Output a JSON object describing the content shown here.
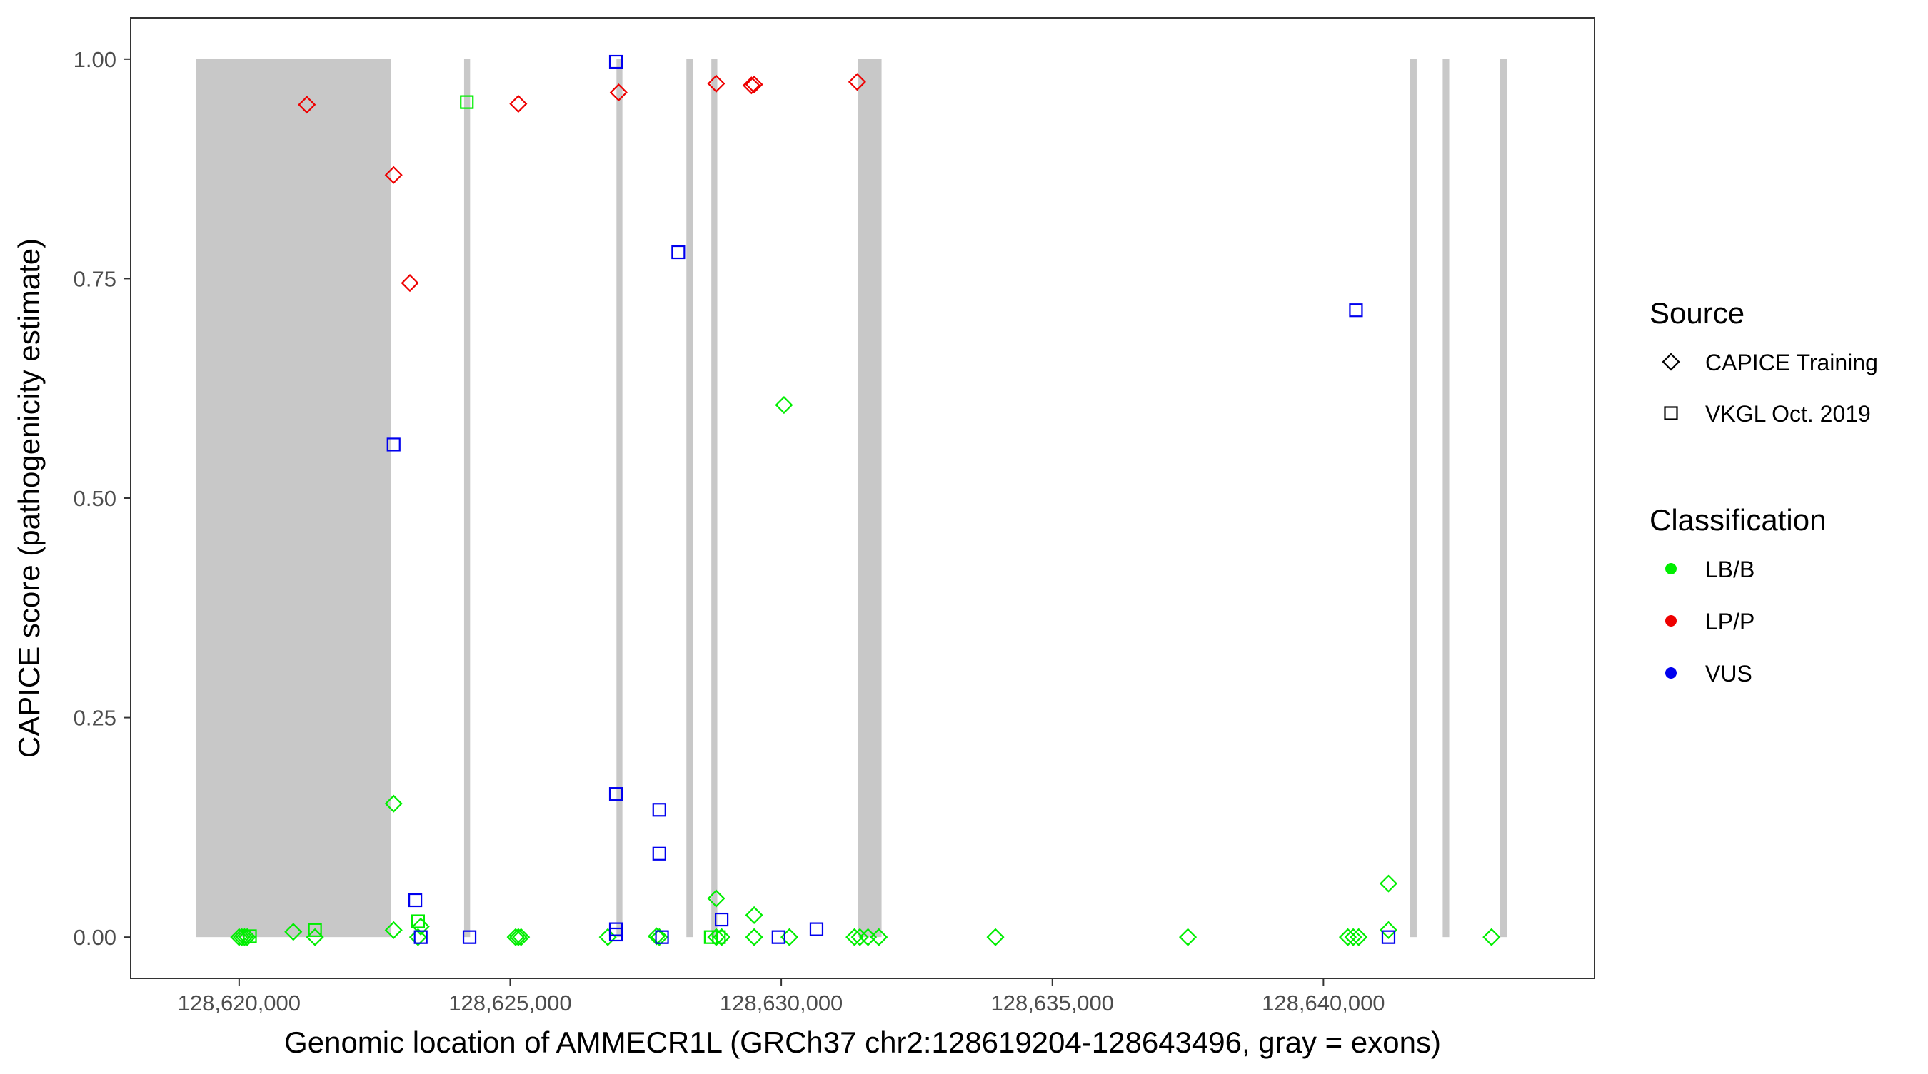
{
  "chart_data": {
    "type": "scatter",
    "title": "",
    "xlabel": "Genomic location of AMMECR1L (GRCh37 chr2:128619204-128643496, gray = exons)",
    "ylabel": "CAPICE score (pathogenicity estimate)",
    "xlim": [
      128618000,
      128645000
    ],
    "ylim": [
      -0.047,
      1.047
    ],
    "x_ticks": [
      128620000,
      128625000,
      128630000,
      128635000,
      128640000
    ],
    "x_tick_labels": [
      "128,620,000",
      "128,625,000",
      "128,630,000",
      "128,635,000",
      "128,640,000"
    ],
    "y_ticks": [
      0,
      0.25,
      0.5,
      0.75,
      1.0
    ],
    "y_tick_labels": [
      "0.00",
      "0.25",
      "0.50",
      "0.75",
      "1.00"
    ],
    "grid": false,
    "legend_placement": "right",
    "exons": [
      [
        128619204,
        128622800
      ],
      [
        128624150,
        128624260
      ],
      [
        128626960,
        128627070
      ],
      [
        128628250,
        128628370
      ],
      [
        128628710,
        128628820
      ],
      [
        128631420,
        128631850
      ],
      [
        128641600,
        128641720
      ],
      [
        128642200,
        128642320
      ],
      [
        128643250,
        128643380
      ]
    ],
    "exon_color": "#c8c8c8",
    "legend": {
      "source": {
        "title": "Source",
        "items": [
          {
            "label": "CAPICE Training",
            "shape": "diamond"
          },
          {
            "label": "VKGL Oct. 2019",
            "shape": "square"
          }
        ]
      },
      "classification": {
        "title": "Classification",
        "items": [
          {
            "label": "LB/B",
            "key": "LB/B",
            "color": "#00ee00"
          },
          {
            "label": "LP/P",
            "key": "LP/P",
            "color": "#ee0000"
          },
          {
            "label": "VUS",
            "key": "VUS",
            "color": "#0000ee"
          }
        ]
      }
    },
    "series": [
      {
        "source": "CAPICE Training",
        "classification": "LP/P",
        "shape": "diamond",
        "points": [
          [
            128621250,
            0.948
          ],
          [
            128622850,
            0.868
          ],
          [
            128623150,
            0.745
          ],
          [
            128625150,
            0.949
          ],
          [
            128627000,
            0.962
          ],
          [
            128628800,
            0.972
          ],
          [
            128629450,
            0.97
          ],
          [
            128629500,
            0.971
          ],
          [
            128631400,
            0.974
          ]
        ]
      },
      {
        "source": "CAPICE Training",
        "classification": "LB/B",
        "shape": "diamond",
        "points": [
          [
            128620000,
            0.0
          ],
          [
            128620050,
            0.0
          ],
          [
            128620100,
            0.0
          ],
          [
            128620150,
            0.0
          ],
          [
            128621000,
            0.006
          ],
          [
            128621400,
            0.0
          ],
          [
            128622850,
            0.152
          ],
          [
            128622850,
            0.008
          ],
          [
            128623300,
            0.0
          ],
          [
            128623350,
            0.012
          ],
          [
            128625100,
            0.0
          ],
          [
            128625150,
            0.0
          ],
          [
            128625200,
            0.0
          ],
          [
            128626800,
            0.0
          ],
          [
            128627700,
            0.001
          ],
          [
            128627750,
            0.0
          ],
          [
            128628800,
            0.044
          ],
          [
            128628800,
            0.0
          ],
          [
            128628900,
            0.0
          ],
          [
            128629500,
            0.025
          ],
          [
            128629500,
            0.0
          ],
          [
            128630050,
            0.606
          ],
          [
            128630150,
            0.0
          ],
          [
            128631350,
            0.0
          ],
          [
            128631450,
            0.0
          ],
          [
            128631600,
            0.0
          ],
          [
            128631800,
            0.0
          ],
          [
            128633950,
            0.0
          ],
          [
            128637500,
            0.0
          ],
          [
            128640450,
            0.0
          ],
          [
            128640550,
            0.0
          ],
          [
            128640650,
            0.0
          ],
          [
            128641200,
            0.061
          ],
          [
            128641200,
            0.008
          ],
          [
            128643100,
            0.0
          ]
        ]
      },
      {
        "source": "VKGL Oct. 2019",
        "classification": "LB/B",
        "shape": "square",
        "points": [
          [
            128620200,
            0.001
          ],
          [
            128621400,
            0.008
          ],
          [
            128623300,
            0.018
          ],
          [
            128624200,
            0.951
          ],
          [
            128628700,
            0.0
          ],
          [
            128628850,
            0.0
          ]
        ]
      },
      {
        "source": "VKGL Oct. 2019",
        "classification": "VUS",
        "shape": "square",
        "points": [
          [
            128622850,
            0.561
          ],
          [
            128623250,
            0.042
          ],
          [
            128623350,
            0.0
          ],
          [
            128624250,
            0.0
          ],
          [
            128626950,
            0.997
          ],
          [
            128626950,
            0.163
          ],
          [
            128626950,
            0.009
          ],
          [
            128626950,
            0.003
          ],
          [
            128627750,
            0.145
          ],
          [
            128627750,
            0.095
          ],
          [
            128627800,
            0.0
          ],
          [
            128628100,
            0.78
          ],
          [
            128628900,
            0.02
          ],
          [
            128629950,
            0.0
          ],
          [
            128630650,
            0.009
          ],
          [
            128640600,
            0.714
          ],
          [
            128641200,
            0.0
          ]
        ]
      }
    ]
  }
}
